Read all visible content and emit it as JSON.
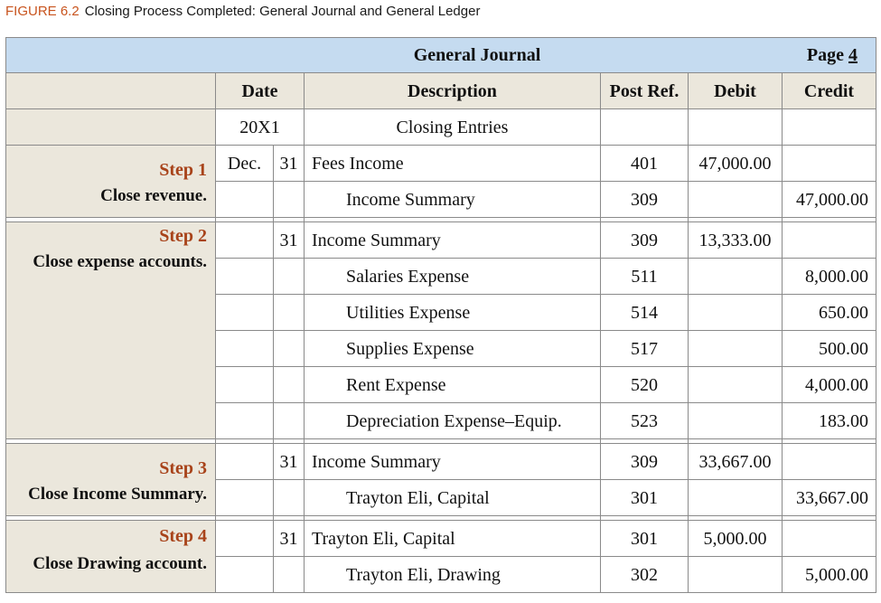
{
  "caption": {
    "figure": "FIGURE 6.2",
    "title": "Closing Process Completed: General Journal and General Ledger"
  },
  "journal": {
    "title": "General Journal",
    "page_label": "Page",
    "page_number": "4",
    "headers": {
      "date": "Date",
      "description": "Description",
      "post_ref": "Post Ref.",
      "debit": "Debit",
      "credit": "Credit"
    },
    "year": "20X1",
    "closing_title": "Closing Entries",
    "month": "Dec.",
    "steps": [
      {
        "label": "Step 1",
        "description": "Close revenue."
      },
      {
        "label": "Step 2",
        "description": "Close expense accounts."
      },
      {
        "label": "Step 3",
        "description": "Close Income Summary."
      },
      {
        "label": "Step 4",
        "description": "Close Drawing account."
      }
    ],
    "entries": [
      [
        {
          "day": "31",
          "account": "Fees Income",
          "ref": "401",
          "debit": "47,000.00",
          "credit": ""
        },
        {
          "day": "",
          "account": "Income Summary",
          "ref": "309",
          "debit": "",
          "credit": "47,000.00"
        }
      ],
      [
        {
          "day": "31",
          "account": "Income Summary",
          "ref": "309",
          "debit": "13,333.00",
          "credit": ""
        },
        {
          "day": "",
          "account": "Salaries Expense",
          "ref": "511",
          "debit": "",
          "credit": "8,000.00"
        },
        {
          "day": "",
          "account": "Utilities Expense",
          "ref": "514",
          "debit": "",
          "credit": "650.00"
        },
        {
          "day": "",
          "account": "Supplies Expense",
          "ref": "517",
          "debit": "",
          "credit": "500.00"
        },
        {
          "day": "",
          "account": "Rent Expense",
          "ref": "520",
          "debit": "",
          "credit": "4,000.00"
        },
        {
          "day": "",
          "account": "Depreciation Expense–Equip.",
          "ref": "523",
          "debit": "",
          "credit": "183.00"
        }
      ],
      [
        {
          "day": "31",
          "account": "Income Summary",
          "ref": "309",
          "debit": "33,667.00",
          "credit": ""
        },
        {
          "day": "",
          "account": "Trayton Eli, Capital",
          "ref": "301",
          "debit": "",
          "credit": "33,667.00"
        }
      ],
      [
        {
          "day": "31",
          "account": "Trayton Eli, Capital",
          "ref": "301",
          "debit": "5,000.00",
          "credit": ""
        },
        {
          "day": "",
          "account": "Trayton Eli, Drawing",
          "ref": "302",
          "debit": "",
          "credit": "5,000.00"
        }
      ]
    ]
  }
}
